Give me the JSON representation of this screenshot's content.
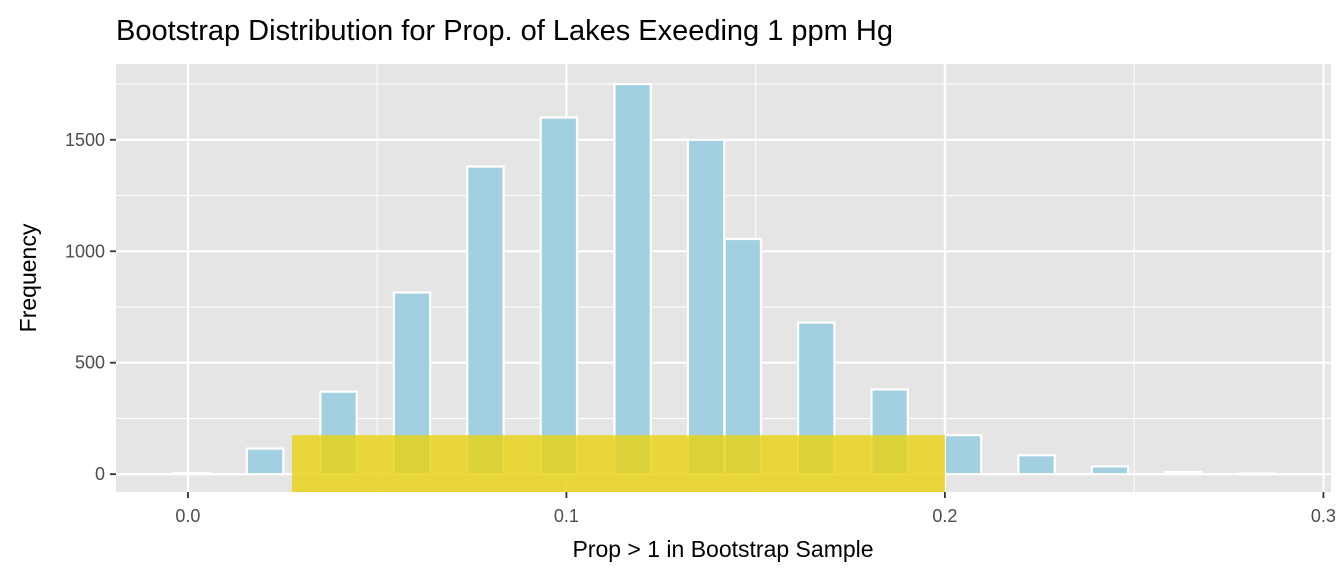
{
  "chart_data": {
    "type": "bar",
    "title": "Bootstrap Distribution for Prop. of Lakes Exeeding 1 ppm Hg",
    "xlabel": "Prop > 1 in Bootstrap Sample",
    "ylabel": "Frequency",
    "xlim": [
      -0.019,
      0.302
    ],
    "ylim": [
      -80,
      1840
    ],
    "xticks": [
      0.0,
      0.1,
      0.2,
      0.3
    ],
    "xtick_labels": [
      "0.0",
      "0.1",
      "0.2",
      "0.3"
    ],
    "yticks": [
      0,
      500,
      1000,
      1500
    ],
    "ytick_labels": [
      "0",
      "500",
      "1000",
      "1500"
    ],
    "bin_width": 0.0096,
    "bins": [
      {
        "x": 0.001,
        "count": 5
      },
      {
        "x": 0.0204,
        "count": 115
      },
      {
        "x": 0.0398,
        "count": 370
      },
      {
        "x": 0.0592,
        "count": 815
      },
      {
        "x": 0.0786,
        "count": 1380
      },
      {
        "x": 0.098,
        "count": 1600
      },
      {
        "x": 0.1175,
        "count": 1750
      },
      {
        "x": 0.1369,
        "count": 1500
      },
      {
        "x": 0.1466,
        "count": 1055
      },
      {
        "x": 0.166,
        "count": 680
      },
      {
        "x": 0.1854,
        "count": 380
      },
      {
        "x": 0.2048,
        "count": 175
      },
      {
        "x": 0.2242,
        "count": 85
      },
      {
        "x": 0.2436,
        "count": 35
      },
      {
        "x": 0.263,
        "count": 10
      },
      {
        "x": 0.2824,
        "count": 3
      }
    ],
    "highlight_interval": {
      "x0": 0.0275,
      "x1": 0.2,
      "y0": -80,
      "y1": 175
    },
    "colors": {
      "panel": "#e5e5e5",
      "grid": "#ffffff",
      "bar_fill": "#a2d0e1",
      "bar_stroke": "#ffffff",
      "highlight": "#e8d214"
    },
    "grid": true
  }
}
